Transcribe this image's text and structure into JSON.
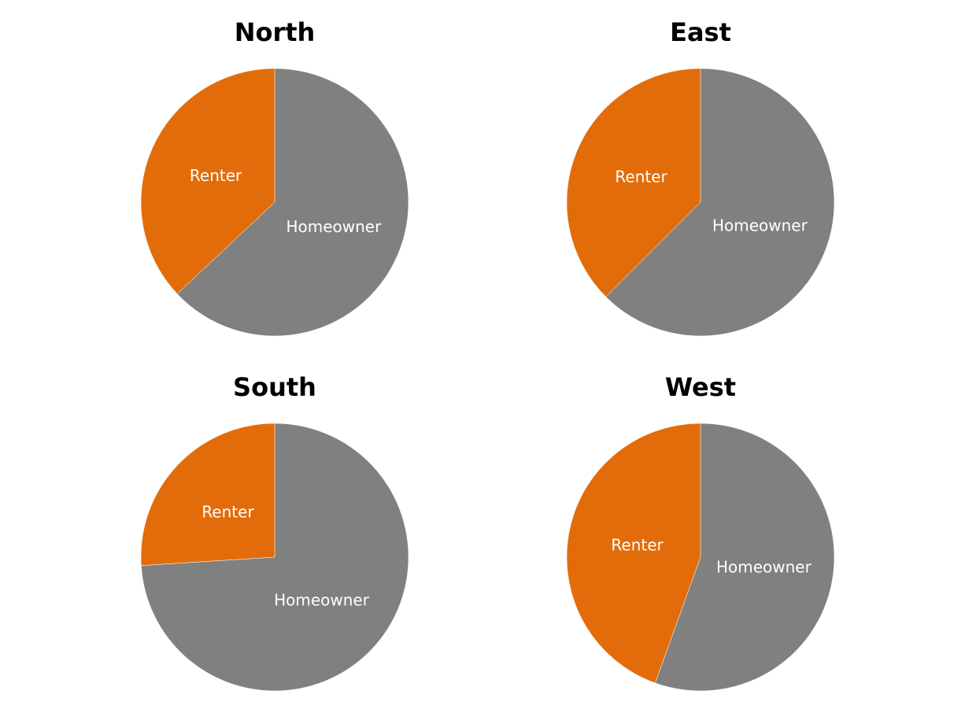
{
  "colors": {
    "Renter": "#E36C0A",
    "Homeowner": "#808080"
  },
  "chart_data": [
    {
      "type": "pie",
      "title": "North",
      "start": "12 o'clock, clockwise",
      "slices": [
        {
          "label": "Homeowner",
          "value": 63.0
        },
        {
          "label": "Renter",
          "value": 37.0
        }
      ]
    },
    {
      "type": "pie",
      "title": "East",
      "start": "12 o'clock, clockwise",
      "slices": [
        {
          "label": "Homeowner",
          "value": 62.5
        },
        {
          "label": "Renter",
          "value": 37.5
        }
      ]
    },
    {
      "type": "pie",
      "title": "South",
      "start": "12 o'clock, clockwise",
      "slices": [
        {
          "label": "Homeowner",
          "value": 74.0
        },
        {
          "label": "Renter",
          "value": 26.0
        }
      ]
    },
    {
      "type": "pie",
      "title": "West",
      "start": "12 o'clock, clockwise",
      "slices": [
        {
          "label": "Homeowner",
          "value": 55.5
        },
        {
          "label": "Renter",
          "value": 44.5
        }
      ]
    }
  ]
}
